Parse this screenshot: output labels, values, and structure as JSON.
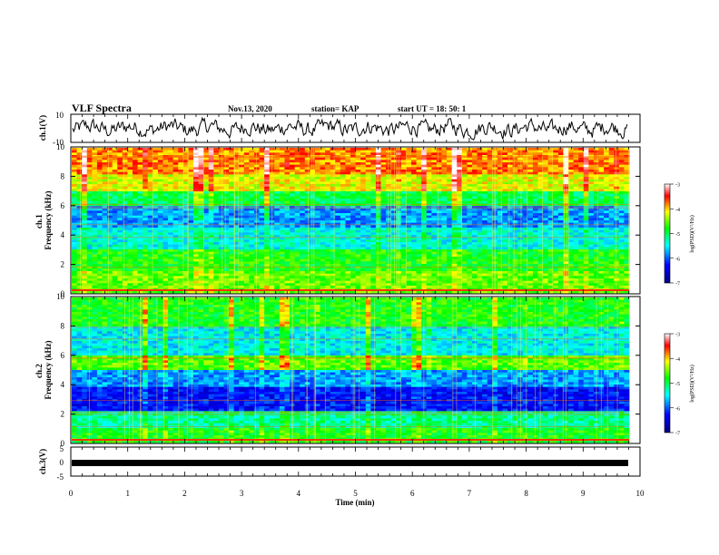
{
  "header": {
    "title": "VLF Spectra",
    "date": "Nov.13, 2020",
    "station": "station= KAP",
    "start": "start  UT =   18: 50: 1"
  },
  "chart_data": [
    {
      "type": "line",
      "name": "panel-ch1-waveform",
      "ylabel": "ch.1(V)",
      "ylim": [
        -10,
        10
      ],
      "yticks": [
        "10",
        "-10"
      ],
      "xlim": [
        0,
        10
      ]
    },
    {
      "type": "heatmap",
      "name": "panel-ch1-spectrogram",
      "ylabel": "ch.1\nFrequency  (kHz)",
      "ylim": [
        0,
        10
      ],
      "yticks": [
        "0",
        "2",
        "4",
        "6",
        "8",
        "10"
      ],
      "xlim": [
        0,
        10
      ],
      "colorbar": {
        "label": "log(PSD)(V²/Hz)",
        "range": [
          -7,
          -3
        ],
        "ticks": [
          "-3",
          "-4",
          "-5",
          "-6",
          "-7"
        ]
      }
    },
    {
      "type": "heatmap",
      "name": "panel-ch2-spectrogram",
      "ylabel": "ch.2\nFrequency  (kHz)",
      "ylim": [
        0,
        10
      ],
      "yticks": [
        "0",
        "2",
        "4",
        "6",
        "8",
        "10"
      ],
      "xlim": [
        0,
        10
      ],
      "colorbar": {
        "label": "log(PSD)(V²/Hz)",
        "range": [
          -7,
          -3
        ],
        "ticks": [
          "-3",
          "-4",
          "-5",
          "-6",
          "-7"
        ]
      }
    },
    {
      "type": "line",
      "name": "panel-ch3-signal",
      "ylabel": "ch.3(V)",
      "ylim": [
        -5,
        5
      ],
      "yticks": [
        "5",
        "0",
        "-5"
      ],
      "xlim": [
        0,
        10
      ],
      "value": 0
    }
  ],
  "xaxis": {
    "label": "Time  (min)",
    "ticks": [
      "0",
      "1",
      "2",
      "3",
      "4",
      "5",
      "6",
      "7",
      "8",
      "9",
      "10"
    ]
  },
  "colors": {
    "scale": [
      "#000080",
      "#0000ff",
      "#00ffff",
      "#00ff00",
      "#ffff00",
      "#ff0000",
      "#ffffff"
    ]
  }
}
